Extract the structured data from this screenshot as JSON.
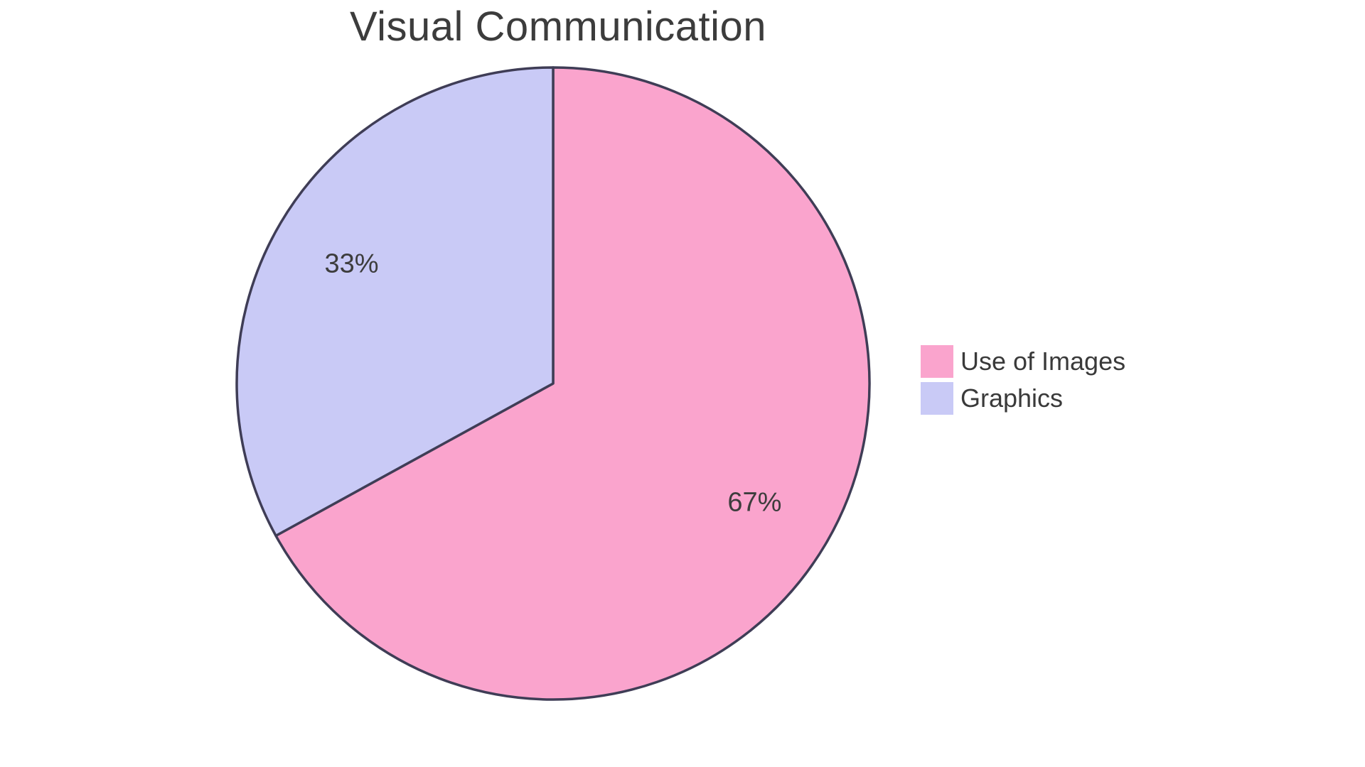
{
  "chart_data": {
    "type": "pie",
    "title": "Visual Communication",
    "labels": [
      "Use of Images",
      "Graphics"
    ],
    "values": [
      67,
      33
    ],
    "percent_labels": [
      "67%",
      "33%"
    ],
    "colors": [
      "#FAA4CD",
      "#C9CAF6"
    ],
    "stroke_color": "#3F3D56",
    "stroke_width": 3.5,
    "start_angle_deg": 0,
    "direction": "clockwise",
    "legend_position": "right",
    "text_color": "#3D3D3D",
    "background": "#FFFFFF"
  }
}
